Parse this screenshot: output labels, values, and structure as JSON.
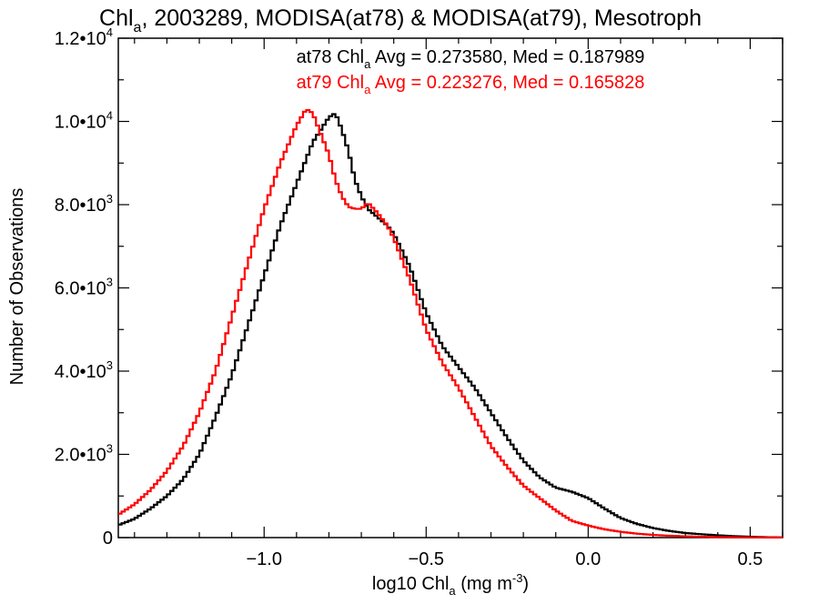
{
  "chart_data": {
    "type": "line",
    "title_main": "Chl",
    "title_sub": "a",
    "title_rest": ", 2003289, MODISA(at78) & MODISA(at79), Mesotroph",
    "xlabel_main": "log10 Chl",
    "xlabel_sub": "a",
    "xlabel_units": " (mg m",
    "xlabel_sup": "-3",
    "xlabel_close": ")",
    "ylabel": "Number of Observations",
    "xlim": [
      -1.45,
      0.6
    ],
    "ylim": [
      0,
      12000
    ],
    "x_ticks": [
      {
        "value": -1.0,
        "label": "−1.0"
      },
      {
        "value": -0.5,
        "label": "−0.5"
      },
      {
        "value": 0.0,
        "label": "0.0"
      },
      {
        "value": 0.5,
        "label": "0.5"
      }
    ],
    "y_ticks": [
      {
        "value": 0,
        "mantissa": "0",
        "exp": ""
      },
      {
        "value": 2000,
        "mantissa": "2.0•10",
        "exp": "3"
      },
      {
        "value": 4000,
        "mantissa": "4.0•10",
        "exp": "3"
      },
      {
        "value": 6000,
        "mantissa": "6.0•10",
        "exp": "3"
      },
      {
        "value": 8000,
        "mantissa": "8.0•10",
        "exp": "3"
      },
      {
        "value": 10000,
        "mantissa": "1.0•10",
        "exp": "4"
      },
      {
        "value": 12000,
        "mantissa": "1.2•10",
        "exp": "4"
      }
    ],
    "grid": false,
    "legend_position": "top-center",
    "series": [
      {
        "id": "at78",
        "color": "#000000",
        "legend_pre": "at78 Chl",
        "legend_sub": "a",
        "legend_post": " Avg = 0.273580, Med = 0.187989",
        "x": [
          -1.45,
          -1.4,
          -1.35,
          -1.3,
          -1.25,
          -1.2,
          -1.15,
          -1.1,
          -1.05,
          -1.0,
          -0.95,
          -0.9,
          -0.85,
          -0.8,
          -0.78,
          -0.76,
          -0.74,
          -0.72,
          -0.7,
          -0.68,
          -0.65,
          -0.62,
          -0.6,
          -0.55,
          -0.5,
          -0.45,
          -0.4,
          -0.35,
          -0.3,
          -0.25,
          -0.2,
          -0.15,
          -0.1,
          -0.05,
          0.0,
          0.05,
          0.1,
          0.15,
          0.2,
          0.25,
          0.3,
          0.35,
          0.4,
          0.45,
          0.5,
          0.55,
          0.6
        ],
        "y": [
          300,
          450,
          700,
          1000,
          1400,
          2000,
          2900,
          3900,
          5100,
          6300,
          7500,
          8500,
          9500,
          10100,
          10200,
          9800,
          9300,
          8600,
          8200,
          7900,
          7700,
          7500,
          7300,
          6500,
          5400,
          4600,
          4100,
          3600,
          3000,
          2400,
          1850,
          1450,
          1200,
          1100,
          950,
          700,
          470,
          330,
          230,
          160,
          110,
          80,
          55,
          35,
          20,
          10,
          5
        ]
      },
      {
        "id": "at79",
        "color": "#ff0000",
        "legend_pre": "at79 Chl",
        "legend_sub": "a",
        "legend_post": " Avg = 0.223276, Med = 0.165828",
        "x": [
          -1.45,
          -1.4,
          -1.35,
          -1.3,
          -1.25,
          -1.2,
          -1.15,
          -1.1,
          -1.05,
          -1.0,
          -0.95,
          -0.9,
          -0.87,
          -0.85,
          -0.83,
          -0.8,
          -0.78,
          -0.76,
          -0.74,
          -0.72,
          -0.7,
          -0.68,
          -0.65,
          -0.62,
          -0.6,
          -0.55,
          -0.5,
          -0.45,
          -0.4,
          -0.35,
          -0.3,
          -0.25,
          -0.2,
          -0.15,
          -0.1,
          -0.05,
          0.0,
          0.05,
          0.1,
          0.15,
          0.2,
          0.25,
          0.3,
          0.35,
          0.4,
          0.45,
          0.5,
          0.55,
          0.6
        ],
        "y": [
          550,
          800,
          1150,
          1600,
          2200,
          3000,
          4000,
          5300,
          6600,
          7900,
          9000,
          9900,
          10300,
          10200,
          9800,
          9200,
          8600,
          8200,
          7950,
          7900,
          7900,
          8050,
          7800,
          7500,
          7200,
          6200,
          5000,
          4200,
          3600,
          2900,
          2200,
          1700,
          1250,
          950,
          650,
          400,
          290,
          200,
          140,
          95,
          65,
          45,
          30,
          20,
          12,
          8,
          5,
          3,
          2
        ]
      }
    ]
  }
}
